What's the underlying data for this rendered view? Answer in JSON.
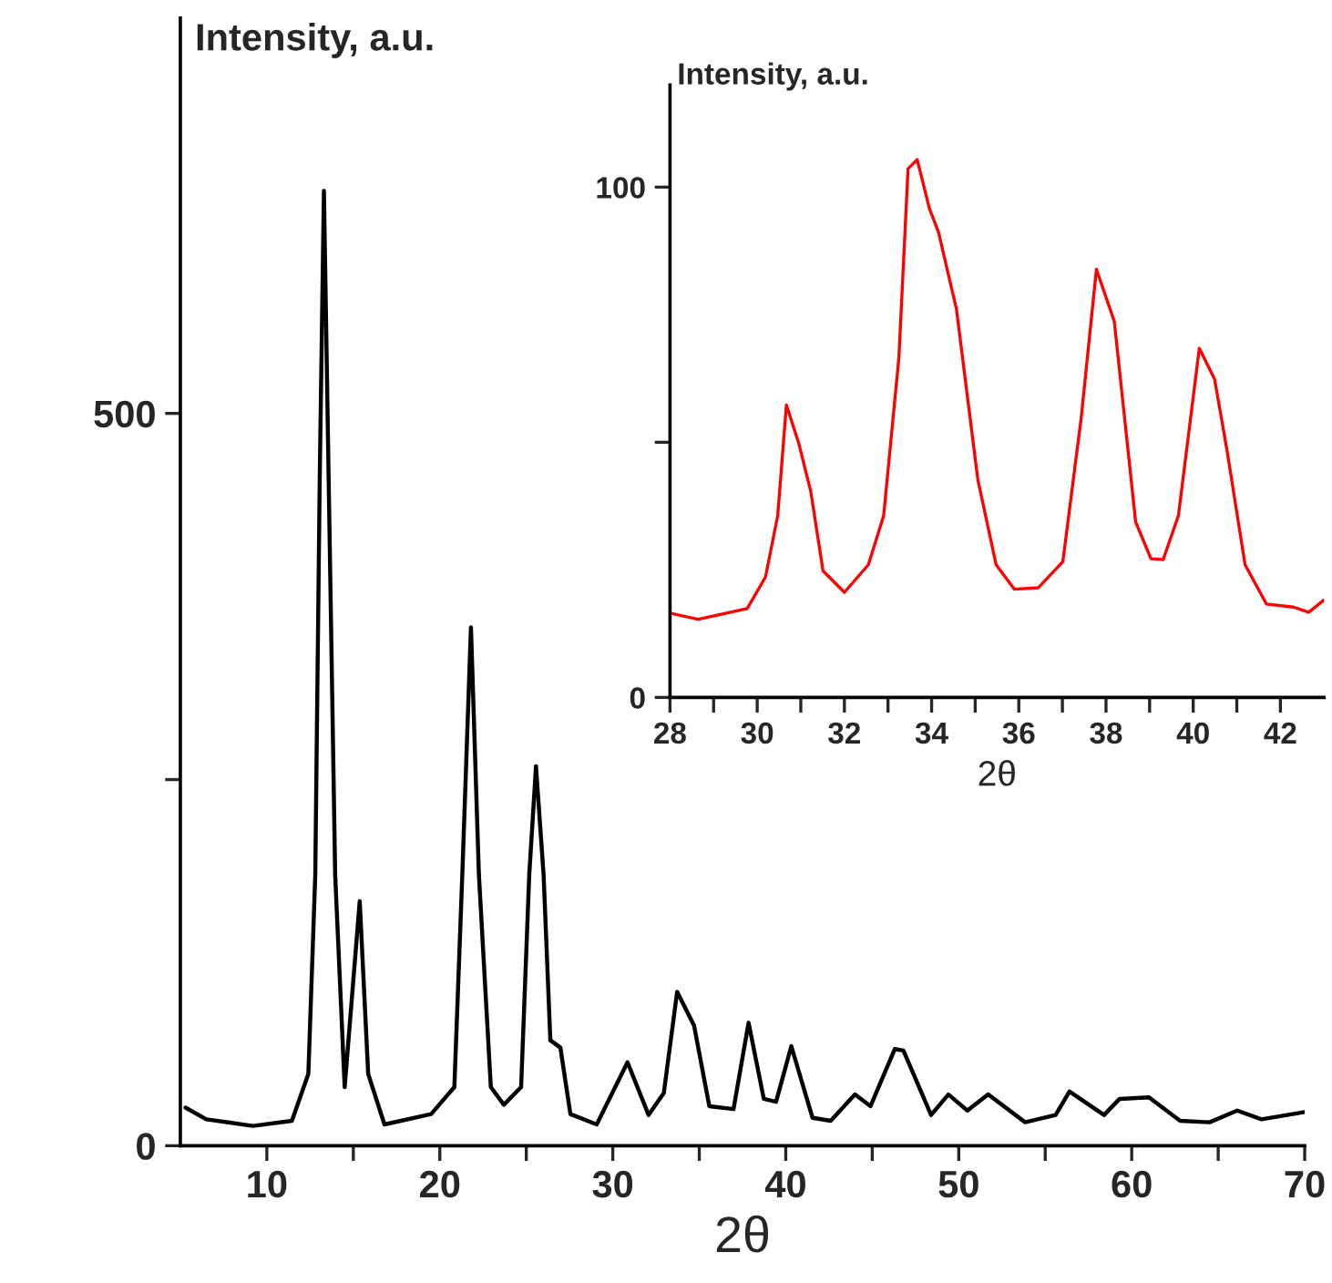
{
  "chart_data": [
    {
      "type": "line",
      "ylabel": "Intensity, a.u.",
      "xlabel": "2θ",
      "xlim": [
        5,
        70
      ],
      "ylim": [
        0,
        770
      ],
      "xticks": [
        10,
        {
          "value": 15,
          "label": null
        },
        20,
        {
          "value": 25,
          "label": null
        },
        30,
        {
          "value": 35,
          "label": null
        },
        40,
        {
          "value": 45,
          "label": null
        },
        50,
        {
          "value": 55,
          "label": null
        },
        60,
        {
          "value": 65,
          "label": null
        },
        70
      ],
      "yticks": [
        0,
        {
          "value": 250,
          "label": null
        },
        500
      ],
      "grid": false,
      "marker": "none",
      "line_style": "solid",
      "series": [
        {
          "color": "#000000",
          "x": [
            5.3,
            6.5,
            9.2,
            11.45,
            12.4,
            12.8,
            13.06,
            13.3,
            13.57,
            13.95,
            14.5,
            15.37,
            15.86,
            16.8,
            19.5,
            20.84,
            21.3,
            21.8,
            22.26,
            22.95,
            23.7,
            24.7,
            25.17,
            25.56,
            26.0,
            26.39,
            26.97,
            27.55,
            29.07,
            30.85,
            32.07,
            32.95,
            33.72,
            34.7,
            35.58,
            36.98,
            37.85,
            38.73,
            39.44,
            40.32,
            41.55,
            42.6,
            44.0,
            44.9,
            46.3,
            46.8,
            48.4,
            49.4,
            50.5,
            51.7,
            53.84,
            55.6,
            56.4,
            58.4,
            59.3,
            61.0,
            62.8,
            64.5,
            66.1,
            67.5,
            70.0
          ],
          "values": [
            26,
            18,
            13.5,
            17,
            49,
            185,
            458,
            652,
            458,
            185,
            40,
            167,
            49,
            14.5,
            21.6,
            40,
            185,
            354,
            185,
            40,
            28,
            40,
            185,
            259,
            185,
            72,
            67,
            21.6,
            14.5,
            57,
            21,
            36,
            105,
            82,
            27,
            25,
            84,
            32,
            30,
            68,
            19,
            17,
            35,
            27,
            66,
            65,
            21,
            35,
            24,
            35,
            16,
            21,
            37,
            21,
            32,
            33,
            17,
            16,
            24,
            18,
            23
          ]
        }
      ]
    },
    {
      "type": "line",
      "ylabel": "Intensity, a.u.",
      "xlabel": "2θ",
      "xlim": [
        28,
        43
      ],
      "ylim": [
        0,
        120
      ],
      "xticks": [
        28,
        {
          "value": 29,
          "label": null
        },
        30,
        {
          "value": 31,
          "label": null
        },
        32,
        {
          "value": 33,
          "label": null
        },
        34,
        {
          "value": 35,
          "label": null
        },
        36,
        {
          "value": 37,
          "label": null
        },
        38,
        {
          "value": 39,
          "label": null
        },
        40,
        {
          "value": 41,
          "label": null
        },
        42
      ],
      "yticks": [
        0,
        {
          "value": 50,
          "label": null
        },
        100
      ],
      "grid": false,
      "marker": "none",
      "line_style": "solid",
      "series": [
        {
          "color": "#ff0000",
          "x": [
            28.0,
            28.65,
            29.77,
            30.19,
            30.47,
            30.67,
            30.95,
            31.23,
            31.51,
            32.0,
            32.55,
            32.9,
            33.25,
            33.46,
            33.67,
            33.95,
            34.16,
            34.57,
            35.06,
            35.48,
            35.9,
            36.45,
            37.01,
            37.43,
            37.78,
            38.19,
            38.68,
            39.03,
            39.31,
            39.66,
            40.14,
            40.49,
            40.77,
            41.19,
            41.68,
            42.3,
            42.65,
            43.0
          ],
          "values": [
            16.5,
            15.3,
            17.4,
            23.6,
            35.6,
            57.3,
            49.9,
            40.3,
            24.8,
            20.6,
            26.0,
            35.6,
            66.6,
            103.6,
            105.4,
            95.8,
            91.1,
            76.1,
            42.7,
            26.0,
            21.2,
            21.5,
            26.6,
            54.7,
            83.9,
            73.7,
            34.4,
            27.2,
            27.0,
            35.6,
            68.4,
            62.4,
            48.7,
            26.0,
            18.3,
            17.7,
            16.7,
            19.1
          ]
        }
      ]
    }
  ]
}
